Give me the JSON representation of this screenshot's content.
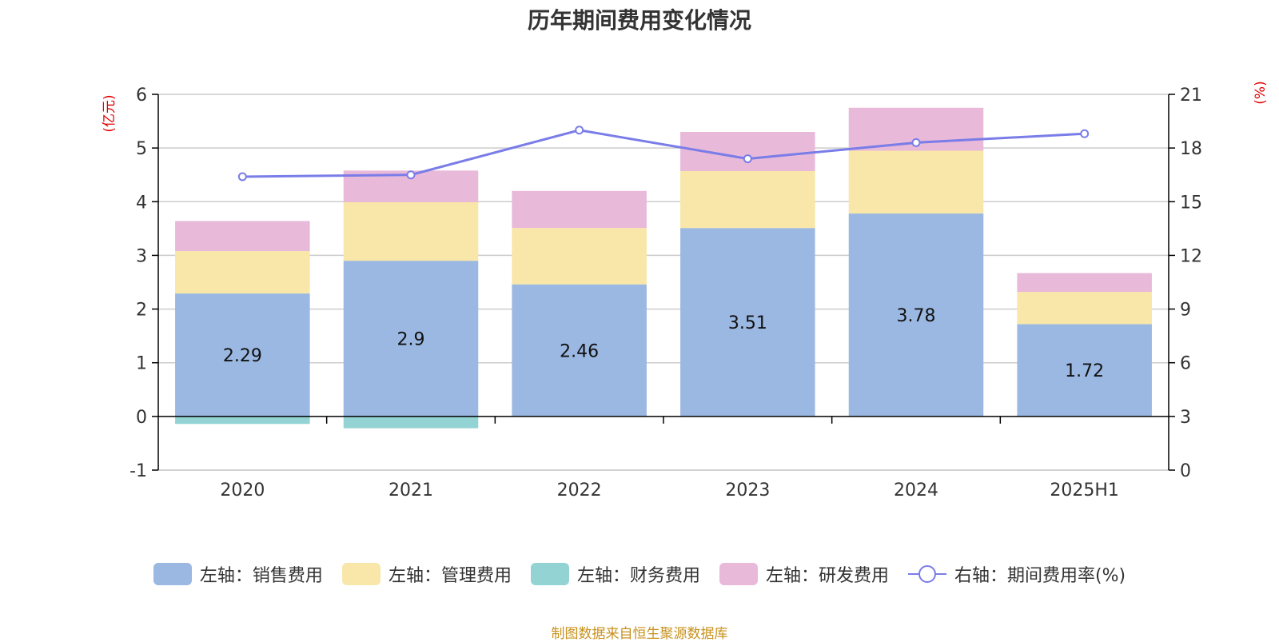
{
  "chart_data": {
    "type": "bar",
    "title": "历年期间费用变化情况",
    "categories": [
      "2020",
      "2021",
      "2022",
      "2023",
      "2024",
      "2025H1"
    ],
    "left_axis": {
      "label": "(亿元)",
      "ticks": [
        "-1",
        "0",
        "1",
        "2",
        "3",
        "4",
        "5",
        "6"
      ],
      "range": [
        -1,
        6
      ]
    },
    "right_axis": {
      "label": "(%)",
      "ticks": [
        "0",
        "3",
        "6",
        "9",
        "12",
        "15",
        "18",
        "21"
      ],
      "range": [
        0,
        21
      ]
    },
    "series": [
      {
        "name": "左轴：销售费用",
        "type": "bar",
        "axis": "left",
        "color": "#9bb8e2",
        "values": [
          2.29,
          2.9,
          2.46,
          3.51,
          3.78,
          1.72
        ],
        "labels": [
          "2.29",
          "2.9",
          "2.46",
          "3.51",
          "3.78",
          "1.72"
        ]
      },
      {
        "name": "左轴：管理费用",
        "type": "bar",
        "axis": "left",
        "color": "#f8e7a8",
        "values": [
          0.79,
          1.09,
          1.05,
          1.06,
          1.17,
          0.6
        ]
      },
      {
        "name": "左轴：财务费用",
        "type": "bar",
        "axis": "left",
        "color": "#93d3d4",
        "values": [
          -0.14,
          -0.22,
          0.0,
          0.0,
          0.0,
          0.0
        ]
      },
      {
        "name": "左轴：研发费用",
        "type": "bar",
        "axis": "left",
        "color": "#e8b9d9",
        "values": [
          0.56,
          0.59,
          0.69,
          0.73,
          0.8,
          0.35
        ]
      },
      {
        "name": "右轴：期间费用率(%)",
        "type": "line",
        "axis": "right",
        "color": "#7a7de8",
        "values": [
          16.4,
          16.5,
          19.0,
          17.4,
          18.3,
          18.8
        ]
      }
    ],
    "legend": "bottom",
    "grid": true
  },
  "source": "制图数据来自恒生聚源数据库"
}
